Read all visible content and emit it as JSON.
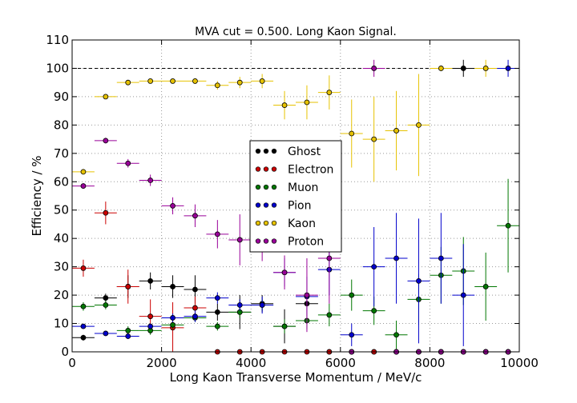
{
  "chart_data": {
    "type": "scatter",
    "title": "MVA cut = 0.500. Long Kaon Signal.",
    "xlabel": "Long Kaon Transverse Momentum / MeV/c",
    "ylabel": "Efficiency / %",
    "xlim": [
      0,
      10000
    ],
    "ylim": [
      0,
      110
    ],
    "xticks": [
      0,
      2000,
      4000,
      6000,
      8000,
      10000
    ],
    "yticks": [
      0,
      10,
      20,
      30,
      40,
      50,
      60,
      70,
      80,
      90,
      100,
      110
    ],
    "reference_line": 100,
    "grid": true,
    "legend_position": "center",
    "bin_half_width": 250,
    "series": [
      {
        "name": "Ghost",
        "color": "#000000",
        "points": [
          [
            250,
            5,
            1
          ],
          [
            750,
            19,
            1.5
          ],
          [
            1250,
            23,
            4
          ],
          [
            1750,
            25,
            3
          ],
          [
            2250,
            23,
            4
          ],
          [
            2750,
            22,
            5
          ],
          [
            3250,
            14,
            3
          ],
          [
            3750,
            14,
            6
          ],
          [
            4250,
            17,
            3
          ],
          [
            4750,
            9,
            6
          ],
          [
            5250,
            17,
            3
          ],
          [
            5750,
            0,
            0
          ],
          [
            6250,
            0,
            0
          ],
          [
            6750,
            0,
            0
          ],
          [
            7250,
            0,
            0
          ],
          [
            7750,
            0,
            0
          ],
          [
            8250,
            0,
            0
          ],
          [
            8750,
            100,
            3
          ],
          [
            9250,
            0,
            0
          ],
          [
            9750,
            0,
            0
          ]
        ]
      },
      {
        "name": "Electron",
        "color": "#cc0000",
        "points": [
          [
            250,
            29.5,
            3
          ],
          [
            750,
            49,
            4
          ],
          [
            1250,
            23,
            6
          ],
          [
            1750,
            12.5,
            6
          ],
          [
            2250,
            8.5,
            9
          ],
          [
            2750,
            15.5,
            4
          ],
          [
            3250,
            0,
            0
          ],
          [
            3750,
            0,
            0
          ],
          [
            4250,
            0,
            0
          ],
          [
            4750,
            0,
            0
          ],
          [
            5250,
            0,
            0
          ],
          [
            5750,
            0,
            0
          ],
          [
            6250,
            0,
            0
          ],
          [
            6750,
            0,
            0
          ],
          [
            7250,
            0,
            0
          ],
          [
            7750,
            0,
            0
          ],
          [
            8250,
            0,
            0
          ],
          [
            8750,
            0,
            0
          ],
          [
            9250,
            0,
            0
          ],
          [
            9750,
            0,
            0
          ]
        ]
      },
      {
        "name": "Muon",
        "color": "#007700",
        "points": [
          [
            250,
            16,
            1.5
          ],
          [
            750,
            16.5,
            1.5
          ],
          [
            1250,
            7.5,
            1.5
          ],
          [
            1750,
            7.5,
            1.5
          ],
          [
            2250,
            9.5,
            1.5
          ],
          [
            2750,
            12,
            1.5
          ],
          [
            3250,
            9,
            1.5
          ],
          [
            3750,
            14,
            2
          ],
          [
            4250,
            16.5,
            2
          ],
          [
            4750,
            9,
            2.5
          ],
          [
            5250,
            11,
            3
          ],
          [
            5750,
            13,
            4
          ],
          [
            6250,
            20,
            5.5
          ],
          [
            6750,
            14.5,
            5
          ],
          [
            7250,
            6,
            5
          ],
          [
            7750,
            18.5,
            9
          ],
          [
            8250,
            27,
            10
          ],
          [
            8750,
            28.5,
            12
          ],
          [
            9250,
            23,
            12
          ],
          [
            9750,
            44.5,
            16.5
          ]
        ]
      },
      {
        "name": "Pion",
        "color": "#0000cc",
        "points": [
          [
            250,
            9,
            0.5
          ],
          [
            750,
            6.5,
            0.5
          ],
          [
            1250,
            5.5,
            1
          ],
          [
            1750,
            9,
            1
          ],
          [
            2250,
            12,
            1.5
          ],
          [
            2750,
            12.5,
            2
          ],
          [
            3250,
            19,
            2
          ],
          [
            3750,
            16.5,
            2
          ],
          [
            4250,
            16.5,
            3
          ],
          [
            4750,
            28,
            5
          ],
          [
            5250,
            19.5,
            7
          ],
          [
            5750,
            29,
            9
          ],
          [
            6250,
            6,
            4
          ],
          [
            6750,
            30,
            14
          ],
          [
            7250,
            33,
            16
          ],
          [
            7750,
            25,
            22
          ],
          [
            8250,
            33,
            16
          ],
          [
            8750,
            20,
            18
          ],
          [
            9250,
            0,
            0
          ],
          [
            9750,
            100,
            3
          ]
        ]
      },
      {
        "name": "Kaon",
        "color": "#e6c200",
        "points": [
          [
            250,
            63.5,
            1
          ],
          [
            750,
            90,
            0.5
          ],
          [
            1250,
            95,
            0.5
          ],
          [
            1750,
            95.5,
            0.5
          ],
          [
            2250,
            95.5,
            0.5
          ],
          [
            2750,
            95.5,
            1
          ],
          [
            3250,
            94,
            1.5
          ],
          [
            3750,
            95,
            2
          ],
          [
            4250,
            95.5,
            2.5
          ],
          [
            4750,
            87,
            5
          ],
          [
            5250,
            88,
            6
          ],
          [
            5750,
            91.5,
            6
          ],
          [
            6250,
            77,
            12
          ],
          [
            6750,
            75,
            15
          ],
          [
            7250,
            78,
            14
          ],
          [
            7750,
            80,
            18
          ],
          [
            8250,
            100,
            1
          ],
          [
            8750,
            0,
            0
          ],
          [
            9250,
            100,
            3
          ],
          [
            9750,
            0,
            0
          ]
        ]
      },
      {
        "name": "Proton",
        "color": "#990099",
        "points": [
          [
            250,
            58.5,
            1
          ],
          [
            750,
            74.5,
            1
          ],
          [
            1250,
            66.5,
            1.5
          ],
          [
            1750,
            60.5,
            2
          ],
          [
            2250,
            51.5,
            3
          ],
          [
            2750,
            48,
            4
          ],
          [
            3250,
            41.5,
            5
          ],
          [
            3750,
            39.5,
            9
          ],
          [
            4250,
            41,
            9
          ],
          [
            4750,
            28,
            6
          ],
          [
            5250,
            20,
            13
          ],
          [
            5750,
            33,
            16
          ],
          [
            6250,
            0,
            0
          ],
          [
            6750,
            100,
            3
          ],
          [
            7250,
            0,
            0
          ],
          [
            7750,
            0,
            0
          ],
          [
            8250,
            0,
            0
          ],
          [
            8750,
            0,
            0
          ],
          [
            9250,
            0,
            0
          ],
          [
            9750,
            0,
            0
          ]
        ]
      }
    ]
  }
}
